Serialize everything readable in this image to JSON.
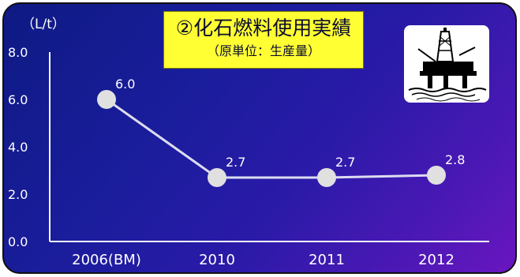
{
  "chart_data": {
    "type": "line",
    "title": "②化石燃料使用実績",
    "subtitle": "（原単位：生産量）",
    "ylabel": "（L/t）",
    "xlabel": "",
    "categories": [
      "2006(BM)",
      "2010",
      "2011",
      "2012"
    ],
    "values": [
      6.0,
      2.7,
      2.7,
      2.8
    ],
    "data_labels": [
      "6.0",
      "2.7",
      "2.7",
      "2.8"
    ],
    "yticks": [
      "8.0",
      "6.0",
      "4.0",
      "2.0",
      "0.0"
    ],
    "ylim": [
      0,
      8
    ],
    "grid": false,
    "legend": "none",
    "colors": {
      "line": "#dcdcf0",
      "marker": "#e0e0e0",
      "title_bg": "#ffff33",
      "bg_start": "#0e1a83",
      "bg_end": "#6a16c0",
      "text": "#ffffff"
    }
  },
  "icon": "oil-rig-icon"
}
